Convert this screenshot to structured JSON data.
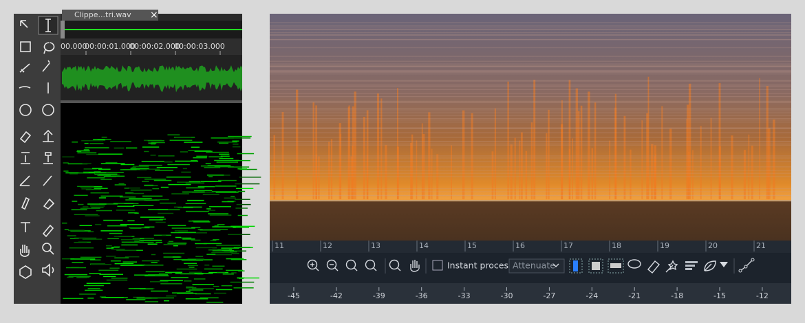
{
  "left_panel": {
    "tab_title": "Clippe...tri.wav",
    "time_ruler": [
      "00.000",
      "00:00:01.000",
      "00:00:02.000",
      "00:00:03.000"
    ]
  },
  "right_panel": {
    "time_ruler": [
      11,
      12,
      13,
      14,
      15,
      16,
      17,
      18,
      19,
      20,
      21
    ],
    "toolbar": {
      "checkbox_label": "Instant process",
      "mode_select": "Attenuate"
    },
    "level_scale": [
      -45,
      -42,
      -39,
      -36,
      -33,
      -30,
      -27,
      -24,
      -21,
      -18,
      -15,
      -12
    ]
  }
}
